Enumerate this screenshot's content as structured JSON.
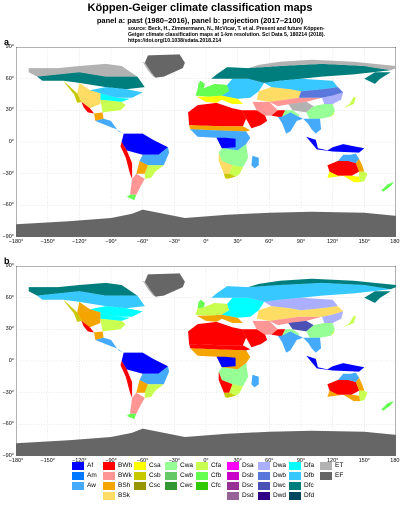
{
  "title": "Köppen-Geiger climate classification maps",
  "subtitle": "panel a: past (1980–2016), panel b: projection (2017–2100)",
  "source_lines": [
    "source: Beck, H., Zimmermann, N., McVicar, T. et al. Present and future Köppen-",
    "Geiger climate classification maps at 1-km resolution. Sci Data 5, 180214 (2018).",
    "https://doi.org/10.1038/sdata.2018.214"
  ],
  "panels": [
    {
      "letter": "a"
    },
    {
      "letter": "b"
    }
  ],
  "y_ticks": [
    "90°",
    "60°",
    "30°",
    "0°",
    "−30°",
    "−60°",
    "−90°"
  ],
  "x_ticks": [
    "−180°",
    "−150°",
    "−120°",
    "−90°",
    "−60°",
    "−30°",
    "0°",
    "30°",
    "60°",
    "90°",
    "120°",
    "150°",
    "180°"
  ],
  "colors": {
    "ocean": "#ffffff",
    "grid": "#bbbbbb",
    "ice": "#666666",
    "desert": "#ff0000",
    "tundra": "#b2b2b2"
  },
  "legend": [
    {
      "code": "Af",
      "color": "#0000ff"
    },
    {
      "code": "Am",
      "color": "#0078ff"
    },
    {
      "code": "Aw",
      "color": "#46aafa"
    },
    {
      "code": "BWh",
      "color": "#ff0000"
    },
    {
      "code": "BWk",
      "color": "#ff9696"
    },
    {
      "code": "BSh",
      "color": "#f5a500"
    },
    {
      "code": "BSk",
      "color": "#ffdc64"
    },
    {
      "code": "Csa",
      "color": "#ffff00"
    },
    {
      "code": "Csb",
      "color": "#c8c800"
    },
    {
      "code": "Csc",
      "color": "#969600"
    },
    {
      "code": "Cwa",
      "color": "#96ff96"
    },
    {
      "code": "Cwb",
      "color": "#64c864"
    },
    {
      "code": "Cwc",
      "color": "#329632"
    },
    {
      "code": "Cfa",
      "color": "#c8ff50"
    },
    {
      "code": "Cfb",
      "color": "#64ff50"
    },
    {
      "code": "Cfc",
      "color": "#32c800"
    },
    {
      "code": "Dsa",
      "color": "#ff00ff"
    },
    {
      "code": "Dsb",
      "color": "#c800c8"
    },
    {
      "code": "Dsc",
      "color": "#963296"
    },
    {
      "code": "Dsd",
      "color": "#966496"
    },
    {
      "code": "Dwa",
      "color": "#aaafff"
    },
    {
      "code": "Dwb",
      "color": "#5a78dc"
    },
    {
      "code": "Dwc",
      "color": "#4b50b4"
    },
    {
      "code": "Dwd",
      "color": "#320087"
    },
    {
      "code": "Dfa",
      "color": "#00ffff"
    },
    {
      "code": "Dfb",
      "color": "#37c8ff"
    },
    {
      "code": "Dfc",
      "color": "#007d7d"
    },
    {
      "code": "Dfd",
      "color": "#00465f"
    },
    {
      "code": "ET",
      "color": "#b2b2b2"
    },
    {
      "code": "EF",
      "color": "#666666"
    }
  ]
}
